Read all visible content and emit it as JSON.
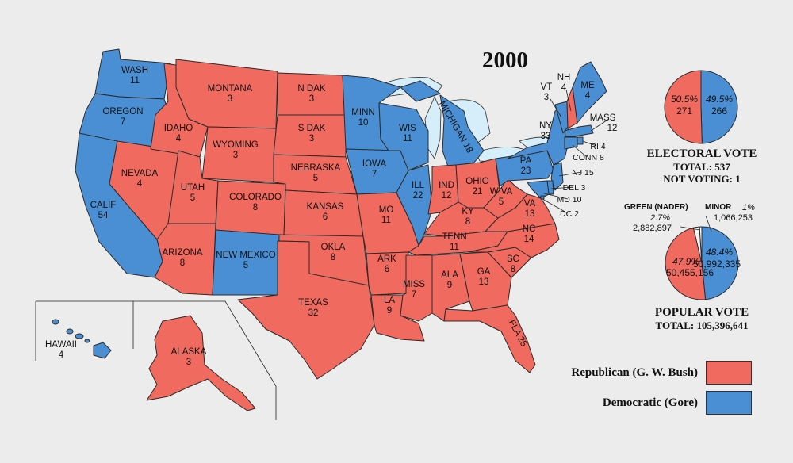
{
  "title": "2000",
  "colors": {
    "republican": "#f06a5f",
    "democratic": "#4a8fd3",
    "background": "#ececec",
    "lake": "#d6eef9",
    "green": "#f3f3f3",
    "minor": "#ffffff"
  },
  "states": [
    {
      "id": "WA",
      "name": "WASH",
      "ev": "11",
      "party": "D"
    },
    {
      "id": "OR",
      "name": "OREGON",
      "ev": "7",
      "party": "D"
    },
    {
      "id": "CA",
      "name": "CALIF",
      "ev": "54",
      "party": "D"
    },
    {
      "id": "NV",
      "name": "NEVADA",
      "ev": "4",
      "party": "R"
    },
    {
      "id": "ID",
      "name": "IDAHO",
      "ev": "4",
      "party": "R"
    },
    {
      "id": "MT",
      "name": "MONTANA",
      "ev": "3",
      "party": "R"
    },
    {
      "id": "WY",
      "name": "WYOMING",
      "ev": "3",
      "party": "R"
    },
    {
      "id": "UT",
      "name": "UTAH",
      "ev": "5",
      "party": "R"
    },
    {
      "id": "AZ",
      "name": "ARIZONA",
      "ev": "8",
      "party": "R"
    },
    {
      "id": "CO",
      "name": "COLORADO",
      "ev": "8",
      "party": "R"
    },
    {
      "id": "NM",
      "name": "NEW MEXICO",
      "ev": "5",
      "party": "D"
    },
    {
      "id": "ND",
      "name": "N DAK",
      "ev": "3",
      "party": "R"
    },
    {
      "id": "SD",
      "name": "S DAK",
      "ev": "3",
      "party": "R"
    },
    {
      "id": "NE",
      "name": "NEBRASKA",
      "ev": "5",
      "party": "R"
    },
    {
      "id": "KS",
      "name": "KANSAS",
      "ev": "6",
      "party": "R"
    },
    {
      "id": "OK",
      "name": "OKLA",
      "ev": "8",
      "party": "R"
    },
    {
      "id": "TX",
      "name": "TEXAS",
      "ev": "32",
      "party": "R"
    },
    {
      "id": "MN",
      "name": "MINN",
      "ev": "10",
      "party": "D"
    },
    {
      "id": "IA",
      "name": "IOWA",
      "ev": "7",
      "party": "D"
    },
    {
      "id": "MO",
      "name": "MO",
      "ev": "11",
      "party": "R"
    },
    {
      "id": "AR",
      "name": "ARK",
      "ev": "6",
      "party": "R"
    },
    {
      "id": "LA",
      "name": "LA",
      "ev": "9",
      "party": "R"
    },
    {
      "id": "WI",
      "name": "WIS",
      "ev": "11",
      "party": "D"
    },
    {
      "id": "IL",
      "name": "ILL",
      "ev": "22",
      "party": "D"
    },
    {
      "id": "MI",
      "name": "MICHIGAN",
      "ev": "18",
      "party": "D"
    },
    {
      "id": "IN",
      "name": "IND",
      "ev": "12",
      "party": "R"
    },
    {
      "id": "OH",
      "name": "OHIO",
      "ev": "21",
      "party": "R"
    },
    {
      "id": "KY",
      "name": "KY",
      "ev": "8",
      "party": "R"
    },
    {
      "id": "TN",
      "name": "TENN",
      "ev": "11",
      "party": "R"
    },
    {
      "id": "MS",
      "name": "MISS",
      "ev": "7",
      "party": "R"
    },
    {
      "id": "AL",
      "name": "ALA",
      "ev": "9",
      "party": "R"
    },
    {
      "id": "GA",
      "name": "GA",
      "ev": "13",
      "party": "R"
    },
    {
      "id": "FL",
      "name": "FLA",
      "ev": "25",
      "party": "R"
    },
    {
      "id": "SC",
      "name": "SC",
      "ev": "8",
      "party": "R"
    },
    {
      "id": "NC",
      "name": "NC",
      "ev": "14",
      "party": "R"
    },
    {
      "id": "VA",
      "name": "VA",
      "ev": "13",
      "party": "R"
    },
    {
      "id": "WV",
      "name": "W VA",
      "ev": "5",
      "party": "R"
    },
    {
      "id": "PA",
      "name": "PA",
      "ev": "23",
      "party": "D"
    },
    {
      "id": "NY",
      "name": "NY",
      "ev": "33",
      "party": "D"
    },
    {
      "id": "VT",
      "name": "VT",
      "ev": "3",
      "party": "D"
    },
    {
      "id": "NH",
      "name": "NH",
      "ev": "4",
      "party": "R"
    },
    {
      "id": "ME",
      "name": "ME",
      "ev": "4",
      "party": "D"
    },
    {
      "id": "MA",
      "name": "MASS",
      "ev": "12",
      "party": "D"
    },
    {
      "id": "RI",
      "name": "RI",
      "ev": "4",
      "party": "D"
    },
    {
      "id": "CT",
      "name": "CONN",
      "ev": "8",
      "party": "D"
    },
    {
      "id": "NJ",
      "name": "NJ",
      "ev": "15",
      "party": "D"
    },
    {
      "id": "DE",
      "name": "DEL",
      "ev": "3",
      "party": "D"
    },
    {
      "id": "MD",
      "name": "MD",
      "ev": "10",
      "party": "D"
    },
    {
      "id": "DC",
      "name": "DC",
      "ev": "2",
      "party": "D"
    },
    {
      "id": "HI",
      "name": "HAWAII",
      "ev": "4",
      "party": "D"
    },
    {
      "id": "AK",
      "name": "ALASKA",
      "ev": "3",
      "party": "R"
    }
  ],
  "electoral_vote": {
    "title": "ELECTORAL VOTE",
    "total_line": "TOTAL:  537",
    "not_voting_line": "NOT VOTING:  1",
    "republican": {
      "pct": "50.5%",
      "count": "271",
      "value": 271
    },
    "democratic": {
      "pct": "49.5%",
      "count": "266",
      "value": 266
    }
  },
  "popular_vote": {
    "title": "POPULAR VOTE",
    "total_line": "TOTAL:  105,396,641",
    "republican": {
      "pct": "47.9%",
      "count": "50,455,156",
      "value": 47.9
    },
    "democratic": {
      "pct": "48.4%",
      "count": "50,992,335",
      "value": 48.4
    },
    "green": {
      "label": "GREEN (NADER)",
      "pct": "2.7%",
      "count": "2,882,897",
      "value": 2.7
    },
    "minor": {
      "label": "MINOR",
      "pct": "1%",
      "count": "1,066,253",
      "value": 1.0
    }
  },
  "legend": [
    {
      "label": "Republican (G. W. Bush)",
      "party": "R"
    },
    {
      "label": "Democratic (Gore)",
      "party": "D"
    }
  ]
}
